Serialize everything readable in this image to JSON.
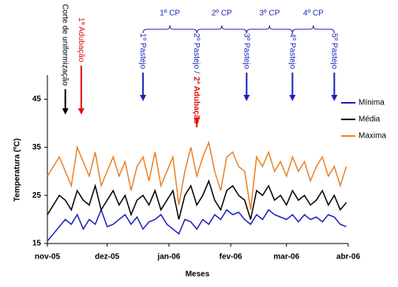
{
  "chart_data": {
    "type": "line",
    "xlabel": "Meses",
    "ylabel": "Temperatura (ºC)",
    "x": [
      0,
      3,
      6,
      9,
      12,
      15,
      18,
      21,
      24,
      27,
      30,
      33,
      36,
      39,
      42,
      45,
      48,
      51,
      54,
      57,
      60,
      63,
      66,
      69,
      72,
      75,
      78,
      81,
      84,
      87,
      90,
      93,
      96,
      99,
      102,
      105,
      108,
      111,
      114,
      117,
      120,
      123,
      126,
      129,
      132,
      135,
      138,
      141,
      144,
      147,
      150
    ],
    "xlim": [
      0,
      151
    ],
    "xticks": [
      {
        "value": 0,
        "label": "nov-05"
      },
      {
        "value": 30,
        "label": "dez-05"
      },
      {
        "value": 61,
        "label": "jan-06"
      },
      {
        "value": 92,
        "label": "fev-06"
      },
      {
        "value": 120,
        "label": "mar-06"
      },
      {
        "value": 151,
        "label": "abr-06"
      }
    ],
    "ylim": [
      15,
      50
    ],
    "yticks": [
      15,
      25,
      35,
      45
    ],
    "legend": "right",
    "series": [
      {
        "name": "Mínima",
        "color": "#1c22b8",
        "values": [
          15.5,
          17,
          18.5,
          20,
          19,
          21,
          18,
          20,
          19,
          22,
          18.5,
          19,
          20,
          21,
          19,
          20.5,
          18,
          19.5,
          20,
          21,
          19,
          18,
          17,
          20,
          19.5,
          18,
          20,
          19,
          21,
          20,
          22,
          21,
          21.5,
          20,
          19,
          21,
          20,
          22,
          21,
          20.5,
          20,
          21,
          19.5,
          21,
          20,
          20.5,
          19.5,
          21,
          20.5,
          19,
          18.5
        ]
      },
      {
        "name": "Média",
        "color": "#000000",
        "values": [
          21,
          23,
          25,
          24,
          22,
          26,
          24,
          23,
          27,
          22,
          24,
          26,
          23,
          25,
          21,
          24,
          25,
          23,
          26,
          22,
          24,
          26,
          20,
          25,
          27,
          23,
          25,
          28,
          24,
          22,
          26,
          27,
          25,
          24,
          20,
          26,
          25,
          27,
          24,
          25,
          23,
          26,
          24,
          25,
          23,
          24,
          26,
          23,
          25,
          22,
          23.5
        ]
      },
      {
        "name": "Maxima",
        "color": "#e8822a",
        "values": [
          29,
          31,
          33,
          30,
          27,
          35,
          32,
          29,
          34,
          27,
          30,
          33,
          29,
          32,
          26,
          31,
          33,
          28,
          34,
          27,
          30,
          33,
          23,
          30,
          35,
          29,
          33,
          36,
          30,
          26,
          33,
          34,
          31,
          30,
          22,
          33,
          31,
          34,
          30,
          32,
          29,
          33,
          30,
          32,
          28,
          31,
          33,
          29,
          31,
          27,
          31
        ]
      }
    ],
    "annotations": [
      {
        "text": "Corte de uniformização",
        "x": 9,
        "color": "#000000"
      },
      {
        "text": "1ª Adubação",
        "x": 17,
        "color": "#e01010"
      },
      {
        "text": "1º Pastejo",
        "x": 48,
        "color": "#1c22b8"
      },
      {
        "text": "2º Pastejo /",
        "x": 75,
        "color": "#1c22b8",
        "text2": "2ª Adubação",
        "color2": "#e01010"
      },
      {
        "text": "3º Pastejo",
        "x": 100,
        "color": "#1c22b8"
      },
      {
        "text": "4º Pastejo",
        "x": 123,
        "color": "#1c22b8"
      },
      {
        "text": "5º Pastejo",
        "x": 144,
        "color": "#1c22b8"
      }
    ],
    "periods": [
      "1º CP",
      "2º CP",
      "3º CP",
      "4º CP"
    ]
  }
}
